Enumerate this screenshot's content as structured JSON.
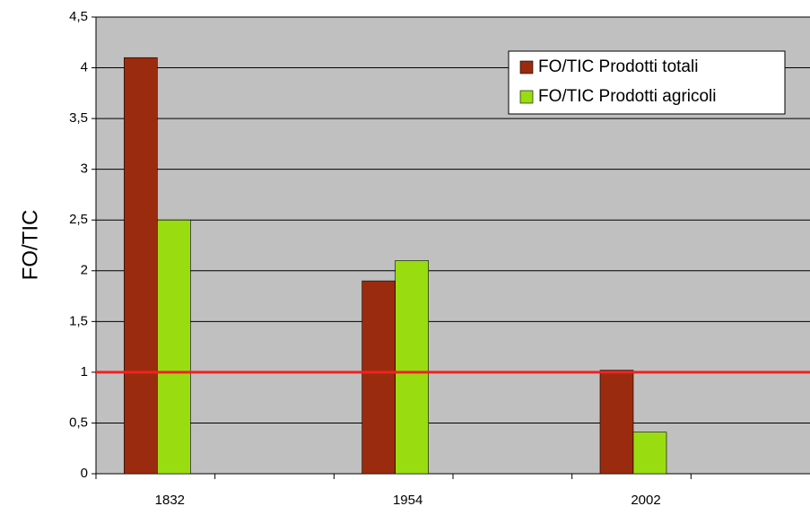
{
  "chart_data": {
    "type": "bar",
    "y_label": "FO/TIC",
    "categories": [
      "1832",
      null,
      "1954",
      null,
      "2002",
      null
    ],
    "series": [
      {
        "name": "FO/TIC Prodotti totali",
        "color": "#9b2b0e",
        "values": [
          4.1,
          null,
          1.9,
          null,
          1.02,
          null
        ]
      },
      {
        "name": "FO/TIC Prodotti agricoli",
        "color": "#99dd11",
        "values": [
          2.5,
          null,
          2.1,
          null,
          0.41,
          null
        ]
      }
    ],
    "ylim": [
      0,
      4.5
    ],
    "yticks": [
      0,
      {
        "value": 0.5,
        "label": "0,5"
      },
      1,
      {
        "value": 1.5,
        "label": "1,5"
      },
      2,
      {
        "value": 2.5,
        "label": "2,5"
      },
      3,
      {
        "value": 3.5,
        "label": "3,5"
      },
      4,
      {
        "value": 4.5,
        "label": "4,5"
      }
    ],
    "grid": true,
    "reference_line": {
      "value": 1,
      "color": "#ee2222"
    },
    "legend": "top-right"
  }
}
